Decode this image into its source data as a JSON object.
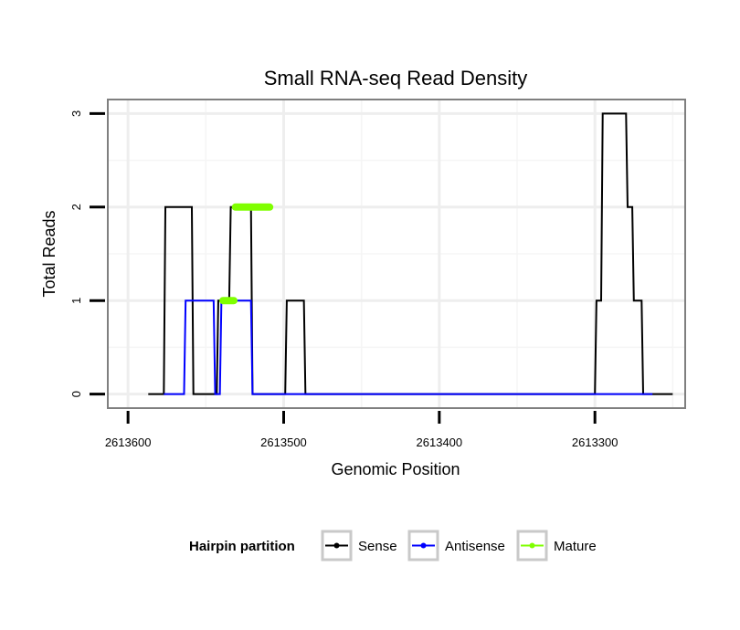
{
  "chart_data": {
    "type": "line",
    "title": "Small RNA-seq Read Density",
    "xlabel": "Genomic Position",
    "ylabel": "Total Reads",
    "x_reversed": true,
    "xlim": [
      2613613,
      2613242
    ],
    "ylim": [
      -0.15,
      3.15
    ],
    "x_ticks": [
      2613600,
      2613500,
      2613400,
      2613300
    ],
    "x_tick_labels": [
      "2613600",
      "2613500",
      "2613400",
      "2613300"
    ],
    "y_ticks": [
      0,
      1,
      2,
      3
    ],
    "y_tick_labels": [
      "0",
      "1",
      "2",
      "3"
    ],
    "grid": true,
    "legend": {
      "title": "Hairpin partition",
      "position": "bottom",
      "entries": [
        "Sense",
        "Antisense",
        "Mature"
      ]
    },
    "series": [
      {
        "name": "Sense",
        "color": "#000000",
        "x": [
          2613587,
          2613577,
          2613576,
          2613559,
          2613558,
          2613543,
          2613542,
          2613535,
          2613534,
          2613521,
          2613520,
          2613499,
          2613498,
          2613487,
          2613486,
          2613463,
          2613462,
          2613300,
          2613299,
          2613296,
          2613295,
          2613280,
          2613279,
          2613276,
          2613275,
          2613270,
          2613269,
          2613264,
          2613263,
          2613250
        ],
        "y": [
          0,
          0,
          2,
          2,
          0,
          0,
          1,
          1,
          2,
          2,
          0,
          0,
          1,
          1,
          0,
          0,
          0,
          0,
          1,
          1,
          3,
          3,
          2,
          2,
          1,
          1,
          0,
          0,
          0,
          0
        ]
      },
      {
        "name": "Antisense",
        "color": "#0000ff",
        "x": [
          2613577,
          2613564,
          2613563,
          2613545,
          2613544,
          2613541,
          2613540,
          2613521,
          2613520,
          2613499,
          2613300,
          2613263
        ],
        "y": [
          0,
          0,
          1,
          1,
          0,
          0,
          1,
          1,
          0,
          0,
          0,
          0
        ]
      },
      {
        "name": "Mature",
        "color": "#7fff00",
        "segments": [
          {
            "x": [
              2613539,
              2613532
            ],
            "y": [
              1,
              1
            ]
          },
          {
            "x": [
              2613531,
              2613509
            ],
            "y": [
              2,
              2
            ]
          }
        ]
      }
    ]
  }
}
